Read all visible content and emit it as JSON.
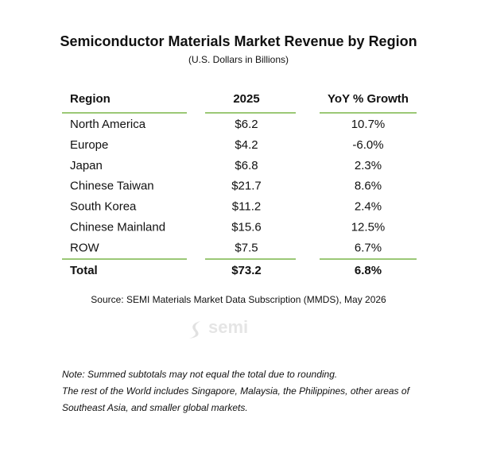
{
  "header": {
    "title": "Semiconductor Materials Market Revenue by Region",
    "subtitle": "(U.S. Dollars in Billions)"
  },
  "table": {
    "columns": [
      "Region",
      "2025",
      "YoY % Growth"
    ],
    "rows": [
      [
        "North America",
        "$6.2",
        "10.7%"
      ],
      [
        "Europe",
        "$4.2",
        "-6.0%"
      ],
      [
        "Japan",
        "$6.8",
        "2.3%"
      ],
      [
        "Chinese Taiwan",
        "$21.7",
        "8.6%"
      ],
      [
        "South Korea",
        "$11.2",
        "2.4%"
      ],
      [
        "Chinese Mainland",
        "$15.6",
        "12.5%"
      ],
      [
        "ROW",
        "$7.5",
        "6.7%"
      ]
    ],
    "total": [
      "Total",
      "$73.2",
      "6.8%"
    ]
  },
  "source": "Source: SEMI Materials Market Data Subscription (MMDS), May 2026",
  "logo": "semi",
  "notes": [
    "Note: Summed subtotals may not equal the total due to rounding.",
    "The rest of the World includes Singapore, Malaysia, the Philippines, other areas of",
    "Southeast Asia, and smaller global markets."
  ]
}
